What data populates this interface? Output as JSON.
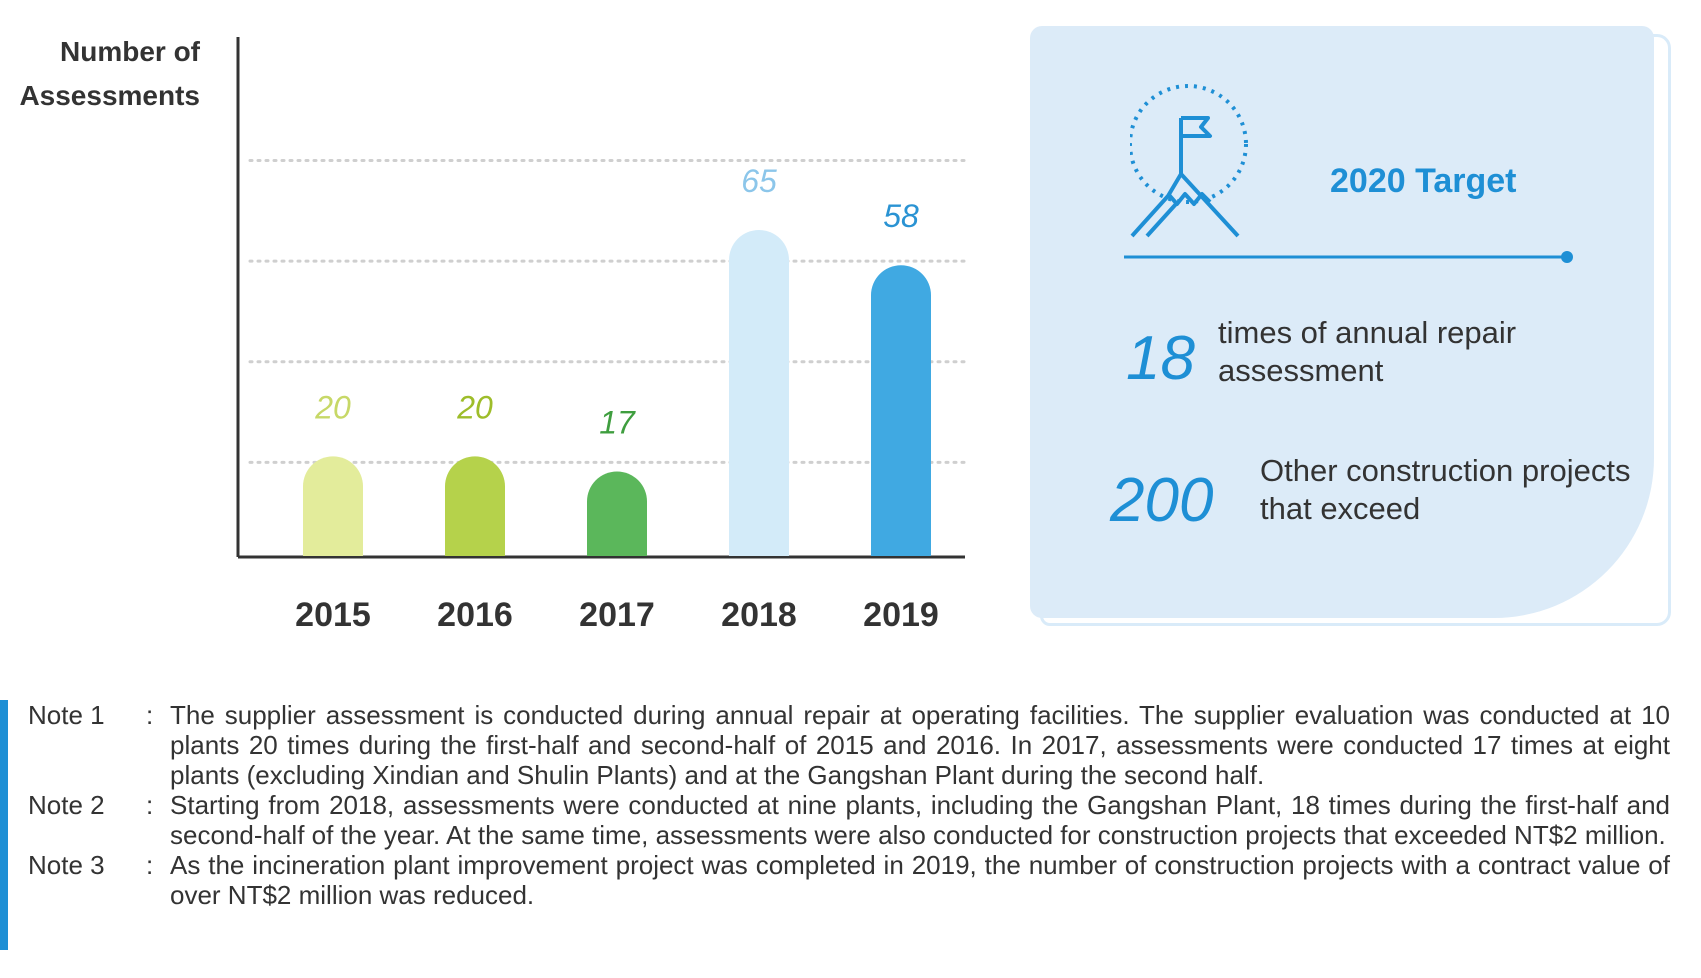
{
  "chart_data": {
    "type": "bar",
    "ylabel_lines": [
      "Number of",
      "Assessments"
    ],
    "categories": [
      "2015",
      "2016",
      "2017",
      "2018",
      "2019"
    ],
    "values": [
      20,
      20,
      17,
      65,
      58
    ],
    "ylim": [
      0,
      80
    ],
    "grid": "dotted-horizontal",
    "bar_colors": [
      "#e3ec9b",
      "#b5d24b",
      "#5bb75b",
      "#d3ebf9",
      "#40a9e2"
    ],
    "label_colors": [
      "#c7d867",
      "#9ebd2a",
      "#3f9e3f",
      "#8cc6ea",
      "#2a93d3"
    ]
  },
  "target": {
    "title": "2020 Target",
    "stats": [
      {
        "number": "18",
        "text": "times of annual repair assessment"
      },
      {
        "number": "200",
        "text": "Other construction projects that exceed"
      }
    ],
    "accent": "#1e8fd5",
    "icon": "mountain-flag-icon"
  },
  "notes": [
    {
      "label": "Note 1",
      "text": "The supplier assessment is conducted during annual repair at operating facilities. The supplier evaluation was conducted at 10 plants 20 times during the first-half and second-half of 2015 and 2016. In 2017, assessments were conducted 17 times at eight plants (excluding Xindian and Shulin Plants) and at the Gangshan Plant during the second half."
    },
    {
      "label": "Note 2",
      "text": "Starting from 2018, assessments were conducted at nine plants, including the Gangshan Plant, 18 times during the first-half and second-half of the year. At the same time, assessments were also conducted for construction projects that exceeded NT$2 million."
    },
    {
      "label": "Note 3",
      "text": "As the incineration plant improvement project was completed in 2019, the number of construction projects with a contract value of over NT$2 million was reduced."
    }
  ]
}
